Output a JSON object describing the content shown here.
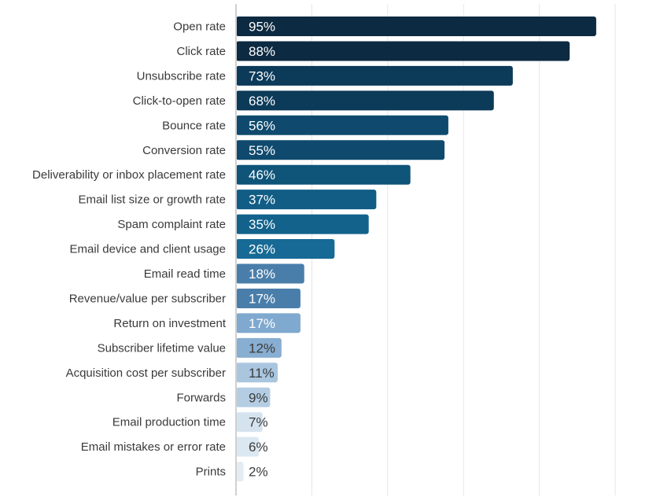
{
  "chart_data": {
    "type": "bar",
    "orientation": "horizontal",
    "title": "",
    "xlabel": "",
    "ylabel": "",
    "xlim": [
      0,
      100
    ],
    "grid": true,
    "legend": "none",
    "value_suffix": "%",
    "categories": [
      "Open rate",
      "Click rate",
      "Unsubscribe rate",
      "Click-to-open rate",
      "Bounce rate",
      "Conversion rate",
      "Deliverability or inbox placement rate",
      "Email list size or growth rate",
      "Spam complaint rate",
      "Email device and client usage",
      "Email read time",
      "Revenue/value per subscriber",
      "Return on investment",
      "Subscriber lifetime value",
      "Acquisition cost per subscriber",
      "Forwards",
      "Email production time",
      "Email mistakes or error rate",
      "Prints"
    ],
    "values": [
      95,
      88,
      73,
      68,
      56,
      55,
      46,
      37,
      35,
      26,
      18,
      17,
      17,
      12,
      11,
      9,
      7,
      6,
      2
    ],
    "value_labels": [
      "95%",
      "88%",
      "73%",
      "68%",
      "56%",
      "55%",
      "46%",
      "37%",
      "35%",
      "26%",
      "18%",
      "17%",
      "17%",
      "12%",
      "11%",
      "9%",
      "7%",
      "6%",
      "2%"
    ],
    "bar_colors": [
      "#0c2a41",
      "#0c2a41",
      "#0c3a59",
      "#0c3a59",
      "#0f4a6e",
      "#0f4a6e",
      "#0f5479",
      "#115d85",
      "#12628c",
      "#166a95",
      "#4a7eaa",
      "#4a7eaa",
      "#7fa9cf",
      "#88aed1",
      "#aac6df",
      "#b4cde3",
      "#d5e3ef",
      "#dbe7f1",
      "#e3ecf4"
    ],
    "label_colors": [
      "#ffffff",
      "#ffffff",
      "#ffffff",
      "#ffffff",
      "#ffffff",
      "#ffffff",
      "#ffffff",
      "#ffffff",
      "#ffffff",
      "#ffffff",
      "#ffffff",
      "#ffffff",
      "#ffffff",
      "#3a3a3a",
      "#3a3a3a",
      "#3a3a3a",
      "#3a3a3a",
      "#3a3a3a",
      "#3a3a3a"
    ],
    "gridline_color": "#e6e6e6",
    "axis_color": "#d0d0d0"
  }
}
